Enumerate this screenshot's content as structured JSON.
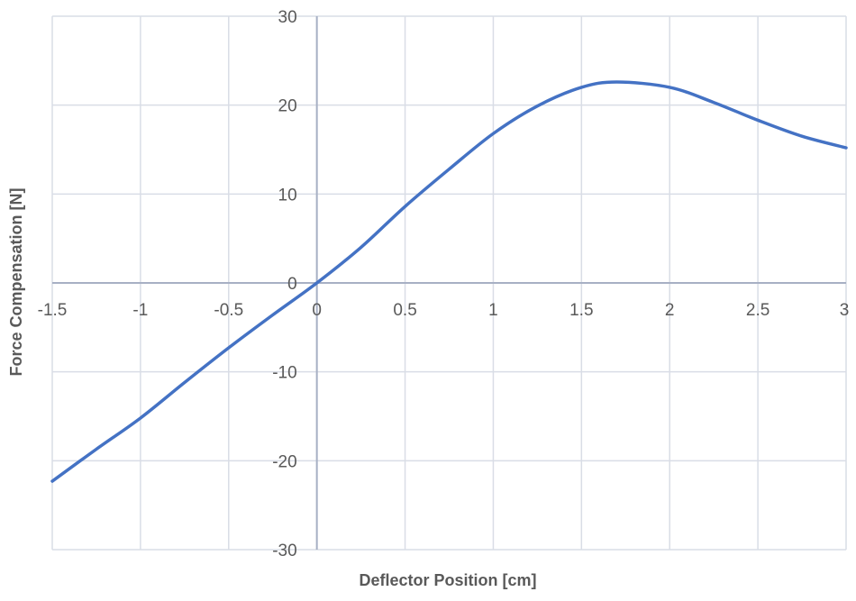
{
  "chart_data": {
    "type": "line",
    "title": "",
    "xlabel": "Deflector Position [cm]",
    "ylabel": "Force Compensation [N]",
    "xlim": [
      -1.5,
      3
    ],
    "ylim": [
      -30,
      30
    ],
    "x_ticks": [
      "-1.5",
      "-1",
      "-0.5",
      "0",
      "0.5",
      "1",
      "1.5",
      "2",
      "2.5",
      "3"
    ],
    "y_ticks": [
      "30",
      "20",
      "10",
      "0",
      "-10",
      "-20",
      "-30"
    ],
    "grid": true,
    "legend": "none",
    "line_color": "#4472c4",
    "series": [
      {
        "x": [
          -1.5,
          -1.25,
          -1,
          -0.75,
          -0.5,
          -0.25,
          0,
          0.25,
          0.5,
          0.75,
          1,
          1.25,
          1.5,
          1.7,
          2,
          2.25,
          2.5,
          2.75,
          3
        ],
        "y": [
          -22.3,
          -18.7,
          -15.2,
          -11.2,
          -7.3,
          -3.6,
          0,
          4.0,
          8.6,
          12.8,
          16.8,
          19.9,
          22.0,
          22.6,
          22.0,
          20.3,
          18.3,
          16.5,
          15.2
        ]
      }
    ]
  }
}
